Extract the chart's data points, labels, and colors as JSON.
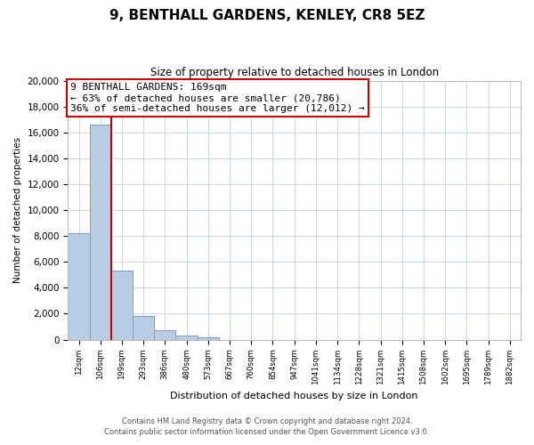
{
  "title": "9, BENTHALL GARDENS, KENLEY, CR8 5EZ",
  "subtitle": "Size of property relative to detached houses in London",
  "xlabel": "Distribution of detached houses by size in London",
  "ylabel": "Number of detached properties",
  "bar_labels": [
    "12sqm",
    "106sqm",
    "199sqm",
    "293sqm",
    "386sqm",
    "480sqm",
    "573sqm",
    "667sqm",
    "760sqm",
    "854sqm",
    "947sqm",
    "1041sqm",
    "1134sqm",
    "1228sqm",
    "1321sqm",
    "1415sqm",
    "1508sqm",
    "1602sqm",
    "1695sqm",
    "1789sqm",
    "1882sqm"
  ],
  "bar_values": [
    8200,
    16600,
    5300,
    1800,
    750,
    300,
    200,
    0,
    0,
    0,
    0,
    0,
    0,
    0,
    0,
    0,
    0,
    0,
    0,
    0,
    0
  ],
  "bar_color": "#b8cce4",
  "bar_edge_color": "#7f9fbf",
  "vline_color": "#cc0000",
  "vline_x": 1.5,
  "annotation_title": "9 BENTHALL GARDENS: 169sqm",
  "annotation_line1": "← 63% of detached houses are smaller (20,786)",
  "annotation_line2": "36% of semi-detached houses are larger (12,012) →",
  "annotation_box_color": "#ffffff",
  "annotation_box_edge": "#cc0000",
  "ylim": [
    0,
    20000
  ],
  "yticks": [
    0,
    2000,
    4000,
    6000,
    8000,
    10000,
    12000,
    14000,
    16000,
    18000,
    20000
  ],
  "footer_line1": "Contains HM Land Registry data © Crown copyright and database right 2024.",
  "footer_line2": "Contains public sector information licensed under the Open Government Licence v3.0.",
  "bg_color": "#ffffff",
  "grid_color": "#ccd6e8"
}
